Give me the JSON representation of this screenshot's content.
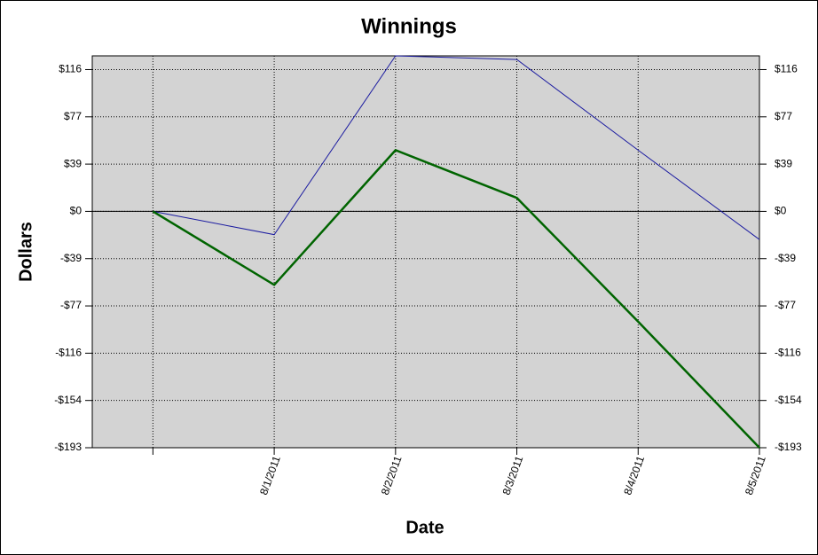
{
  "chart_data": {
    "type": "line",
    "title": "Winnings",
    "x_label": "Date",
    "y_label": "Dollars",
    "categories": [
      null,
      "8/1/2011",
      "8/2/2011",
      "8/3/2011",
      "8/4/2011",
      "8/5/2011"
    ],
    "series": [
      {
        "color": "#1a1aa0",
        "values": [
          0,
          -19,
          127,
          124,
          50,
          -23
        ]
      },
      {
        "color": "#006400",
        "values": [
          0,
          -60,
          50,
          11,
          -90,
          -193
        ]
      }
    ],
    "ylim": [
      -193,
      127
    ],
    "yticks": [
      {
        "value": 115.8,
        "label": "$116"
      },
      {
        "value": 77.2,
        "label": "$77"
      },
      {
        "value": 38.6,
        "label": "$39"
      },
      {
        "value": 0,
        "label": "$0"
      },
      {
        "value": -38.6,
        "label": "-$39"
      },
      {
        "value": -77.2,
        "label": "-$77"
      },
      {
        "value": -115.8,
        "label": "-$116"
      },
      {
        "value": -154.4,
        "label": "-$154"
      },
      {
        "value": -193,
        "label": "-$193"
      }
    ],
    "grid": true
  }
}
